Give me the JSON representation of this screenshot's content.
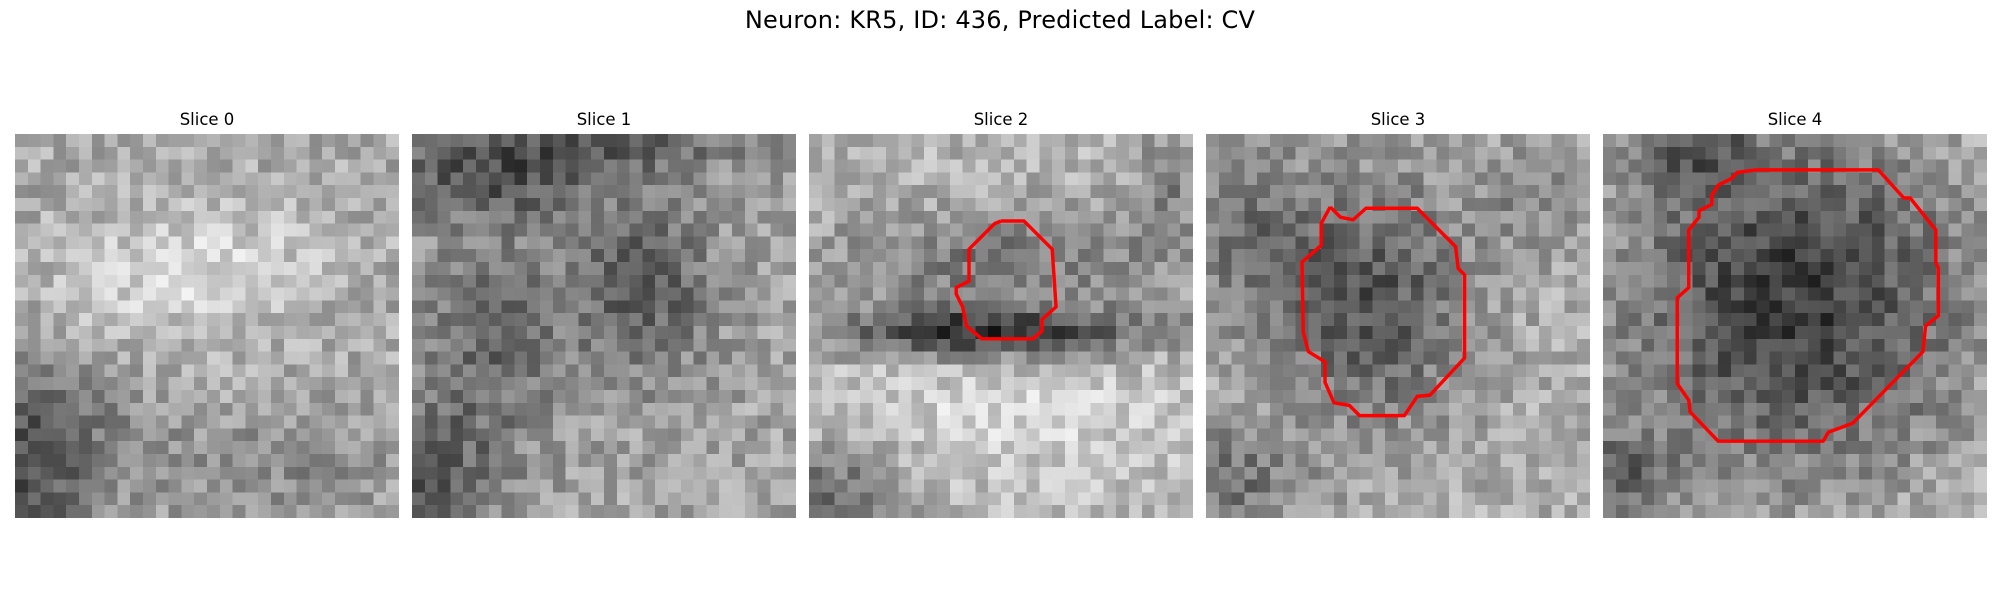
{
  "figure": {
    "title": "Neuron: KR5, ID: 436, Predicted Label: CV",
    "contour_color": "#ff0000",
    "colormap": "gray"
  },
  "slices": [
    {
      "title": "Slice 0",
      "has_contour": false
    },
    {
      "title": "Slice 1",
      "has_contour": false
    },
    {
      "title": "Slice 2",
      "has_contour": true
    },
    {
      "title": "Slice 3",
      "has_contour": true
    },
    {
      "title": "Slice 4",
      "has_contour": true
    }
  ]
}
